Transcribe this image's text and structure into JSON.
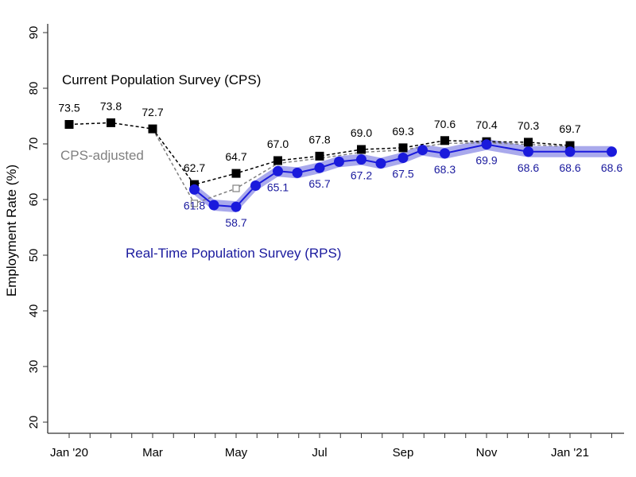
{
  "chart_data": {
    "type": "line",
    "title": "",
    "xlabel": "",
    "ylabel": "Employment Rate (%)",
    "ylim": [
      20,
      90
    ],
    "yticks": [
      20,
      30,
      40,
      50,
      60,
      70,
      80,
      90
    ],
    "xticks": [
      {
        "date": "2020-01",
        "label": "Jan '20"
      },
      {
        "date": "2020-03",
        "label": "Mar"
      },
      {
        "date": "2020-05",
        "label": "May"
      },
      {
        "date": "2020-07",
        "label": "Jul"
      },
      {
        "date": "2020-09",
        "label": "Sep"
      },
      {
        "date": "2020-11",
        "label": "Nov"
      },
      {
        "date": "2021-01",
        "label": "Jan '21"
      }
    ],
    "xlim": [
      "2020-01",
      "2021-02"
    ],
    "grid": false,
    "series": [
      {
        "name": "Current Population Survey (CPS)",
        "color": "#000000",
        "style": "dashed, filled squares",
        "x": [
          "2020-01",
          "2020-02",
          "2020-03",
          "2020-04",
          "2020-05",
          "2020-06",
          "2020-07",
          "2020-08",
          "2020-09",
          "2020-10",
          "2020-11",
          "2020-12",
          "2021-01"
        ],
        "y": [
          73.5,
          73.8,
          72.7,
          62.7,
          64.7,
          67.0,
          67.8,
          69.0,
          69.3,
          70.6,
          70.4,
          70.3,
          69.7
        ],
        "labels": [
          "73.5",
          "73.8",
          "72.7",
          "62.7",
          "64.7",
          "67.0",
          "67.8",
          "69.0",
          "69.3",
          "70.6",
          "70.4",
          "70.3",
          "69.7"
        ]
      },
      {
        "name": "CPS-adjusted",
        "color": "#808080",
        "style": "dashed, hollow squares",
        "x": [
          "2020-03",
          "2020-04",
          "2020-05",
          "2020-06",
          "2020-07",
          "2020-08",
          "2020-09",
          "2020-10",
          "2020-11",
          "2020-12",
          "2021-01"
        ],
        "y": [
          72.7,
          59.3,
          62.0,
          66.5,
          67.4,
          68.5,
          68.9,
          70.1,
          70.2,
          69.9,
          69.5
        ]
      },
      {
        "name": "Real-Time Population Survey (RPS)",
        "color": "#1a1adc",
        "band_color": "#8c8ce6",
        "style": "solid, filled circles, confidence band",
        "x": [
          "2020-04-01",
          "2020-04-15",
          "2020-05-01",
          "2020-05-15",
          "2020-06-01",
          "2020-06-15",
          "2020-07-01",
          "2020-07-15",
          "2020-08-01",
          "2020-08-15",
          "2020-09-01",
          "2020-09-15",
          "2020-10-01",
          "2020-11-01",
          "2020-12-01",
          "2021-01-01",
          "2021-02-01"
        ],
        "y": [
          61.8,
          59.0,
          58.7,
          62.5,
          65.1,
          64.8,
          65.7,
          66.8,
          67.2,
          66.5,
          67.5,
          68.9,
          68.3,
          69.9,
          68.6,
          68.6,
          68.6
        ],
        "band_halfwidth": 1.0,
        "labels": {
          "2020-04-01": "61.8",
          "2020-05-01": "58.7",
          "2020-06-01": "65.1",
          "2020-07-01": "65.7",
          "2020-08-01": "67.2",
          "2020-09-01": "67.5",
          "2020-10-01": "68.3",
          "2020-11-01": "69.9",
          "2020-12-01": "68.6",
          "2021-01-01": "68.6",
          "2021-02-01": "68.6"
        }
      }
    ]
  }
}
